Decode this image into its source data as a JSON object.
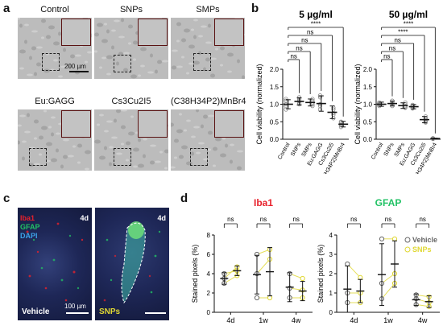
{
  "panel_a": {
    "letter": "a",
    "images": [
      {
        "label": "Control"
      },
      {
        "label": "SNPs"
      },
      {
        "label": "SMPs"
      },
      {
        "label": "Eu:GAGG"
      },
      {
        "label": "Cs3Cu2I5"
      },
      {
        "label": "(C38H34P2)MnBr4"
      }
    ],
    "scale_label": "200 µm"
  },
  "panel_b": {
    "letter": "b",
    "charts": [
      {
        "title": "5 µg/ml",
        "ylabel": "Cell viability (normalized)"
      },
      {
        "title": "50 µg/ml",
        "ylabel": "Cell viability (normalized)"
      }
    ]
  },
  "panel_c": {
    "letter": "c",
    "labels": {
      "iba1": "Iba1",
      "gfap": "GFAP",
      "dapi": "DAPI"
    },
    "left_day": "4d",
    "right_day": "4d",
    "left_group": "Vehicle",
    "right_group": "SNPs",
    "scale_label": "100 µm"
  },
  "panel_d": {
    "letter": "d",
    "charts": [
      {
        "title": "Iba1",
        "ylabel": "Stained pixels (%)"
      },
      {
        "title": "GFAP",
        "ylabel": "Stained pixels (%)"
      }
    ],
    "legend": [
      {
        "label": "Vehicle"
      },
      {
        "label": "SNPs"
      }
    ]
  },
  "colors": {
    "iba1": "#e8212c",
    "gfap": "#22c265",
    "dapi": "#3da2e8",
    "snps": "#e0d833",
    "vehicle": "#666666"
  },
  "chart_data": [
    {
      "type": "scatter",
      "title": "5 µg/ml",
      "ylabel": "Cell viability (normalized)",
      "categories": [
        "Control",
        "SNPs",
        "SMPs",
        "Eu:GAGG",
        "Cs3Cu2I5",
        "(C38H34P2)MnBr4"
      ],
      "ylim": [
        0,
        2.0
      ],
      "yticks": [
        0.0,
        0.5,
        1.0,
        1.5,
        2.0
      ],
      "yticklabels": [
        "0.0",
        "0.5",
        "1.0",
        "1.5",
        "2.0"
      ],
      "means": [
        1.0,
        1.08,
        1.05,
        1.02,
        0.77,
        0.43
      ],
      "sd": [
        0.13,
        0.1,
        0.1,
        0.22,
        0.18,
        0.08
      ],
      "points": [
        [
          0.85,
          1.0,
          1.1,
          1.15,
          0.95
        ],
        [
          1.0,
          1.1,
          1.15,
          1.05,
          1.2
        ],
        [
          0.95,
          1.05,
          1.15,
          1.1,
          1.0
        ],
        [
          0.85,
          0.95,
          1.25,
          1.2,
          1.0
        ],
        [
          0.6,
          0.75,
          0.9,
          0.85,
          0.7
        ],
        [
          0.35,
          0.42,
          0.48,
          0.4,
          0.5
        ]
      ],
      "significance": [
        {
          "from": 0,
          "to": 1,
          "label": "ns"
        },
        {
          "from": 0,
          "to": 2,
          "label": "ns"
        },
        {
          "from": 0,
          "to": 3,
          "label": "ns"
        },
        {
          "from": 0,
          "to": 4,
          "label": "ns"
        },
        {
          "from": 0,
          "to": 5,
          "label": "****"
        }
      ]
    },
    {
      "type": "scatter",
      "title": "50 µg/ml",
      "ylabel": "Cell viability (normalized)",
      "categories": [
        "Control",
        "SNPs",
        "SMPs",
        "Eu:GAGG",
        "Cs3Cu2I5",
        "(C38H34P2)MnBr4"
      ],
      "ylim": [
        0,
        2.0
      ],
      "yticks": [
        0.0,
        0.5,
        1.0,
        1.5,
        2.0
      ],
      "yticklabels": [
        "0.0",
        "0.5",
        "1.0",
        "1.5",
        "2.0"
      ],
      "means": [
        1.0,
        1.02,
        0.96,
        0.93,
        0.56,
        0.02
      ],
      "sd": [
        0.06,
        0.07,
        0.08,
        0.06,
        0.09,
        0.01
      ],
      "points": [
        [
          0.95,
          1.0,
          1.05,
          1.02,
          0.98
        ],
        [
          0.95,
          1.05,
          1.1,
          1.0,
          1.0
        ],
        [
          0.9,
          0.95,
          1.05,
          1.0,
          0.92
        ],
        [
          0.88,
          0.95,
          0.98,
          0.9,
          0.95
        ],
        [
          0.48,
          0.55,
          0.65,
          0.6,
          0.5
        ],
        [
          0.01,
          0.02,
          0.03,
          0.02,
          0.01
        ]
      ],
      "significance": [
        {
          "from": 0,
          "to": 1,
          "label": "ns"
        },
        {
          "from": 0,
          "to": 2,
          "label": "ns"
        },
        {
          "from": 0,
          "to": 3,
          "label": "ns"
        },
        {
          "from": 0,
          "to": 4,
          "label": "****"
        },
        {
          "from": 0,
          "to": 5,
          "label": "****"
        }
      ]
    },
    {
      "type": "scatter",
      "title": "Iba1",
      "ylabel": "Stained pixels (%)",
      "categories": [
        "4d",
        "1w",
        "4w"
      ],
      "ylim": [
        0,
        8
      ],
      "yticks": [
        0,
        2,
        4,
        6,
        8
      ],
      "yticklabels": [
        "0",
        "2",
        "4",
        "6",
        "8"
      ],
      "series": [
        {
          "group": "Vehicle",
          "means": [
            3.5,
            3.9,
            2.6
          ],
          "sd": [
            0.6,
            2.0,
            1.5
          ],
          "points": [
            [
              3.0,
              4.0,
              3.5
            ],
            [
              1.5,
              4.0,
              6.0
            ],
            [
              1.5,
              2.5,
              4.0
            ]
          ]
        },
        {
          "group": "SNPs",
          "means": [
            4.3,
            4.2,
            2.2
          ],
          "sd": [
            0.5,
            2.5,
            1.0
          ],
          "points": [
            [
              3.8,
              4.3,
              4.7
            ],
            [
              1.5,
              5.5,
              6.5
            ],
            [
              1.5,
              2.3,
              3.5
            ]
          ]
        }
      ],
      "significance": [
        "ns",
        "ns",
        "ns"
      ]
    },
    {
      "type": "scatter",
      "title": "GFAP",
      "ylabel": "Stained pixels (%)",
      "categories": [
        "4d",
        "1w",
        "4w"
      ],
      "ylim": [
        0,
        4
      ],
      "yticks": [
        0,
        1,
        2,
        3,
        4
      ],
      "yticklabels": [
        "0",
        "1",
        "2",
        "3",
        "4"
      ],
      "series": [
        {
          "group": "Vehicle",
          "means": [
            1.2,
            1.95,
            0.65
          ],
          "sd": [
            1.2,
            1.6,
            0.3
          ],
          "points": [
            [
              0.5,
              1.0,
              2.5
            ],
            [
              0.7,
              1.5,
              3.8
            ],
            [
              0.4,
              0.7,
              0.9
            ]
          ]
        },
        {
          "group": "SNPs",
          "means": [
            1.1,
            2.5,
            0.55
          ],
          "sd": [
            0.6,
            1.2,
            0.3
          ],
          "points": [
            [
              0.5,
              1.0,
              1.8
            ],
            [
              1.5,
              2.0,
              3.8
            ],
            [
              0.3,
              0.5,
              0.8
            ]
          ]
        }
      ],
      "significance": [
        "ns",
        "ns",
        "ns"
      ]
    }
  ]
}
